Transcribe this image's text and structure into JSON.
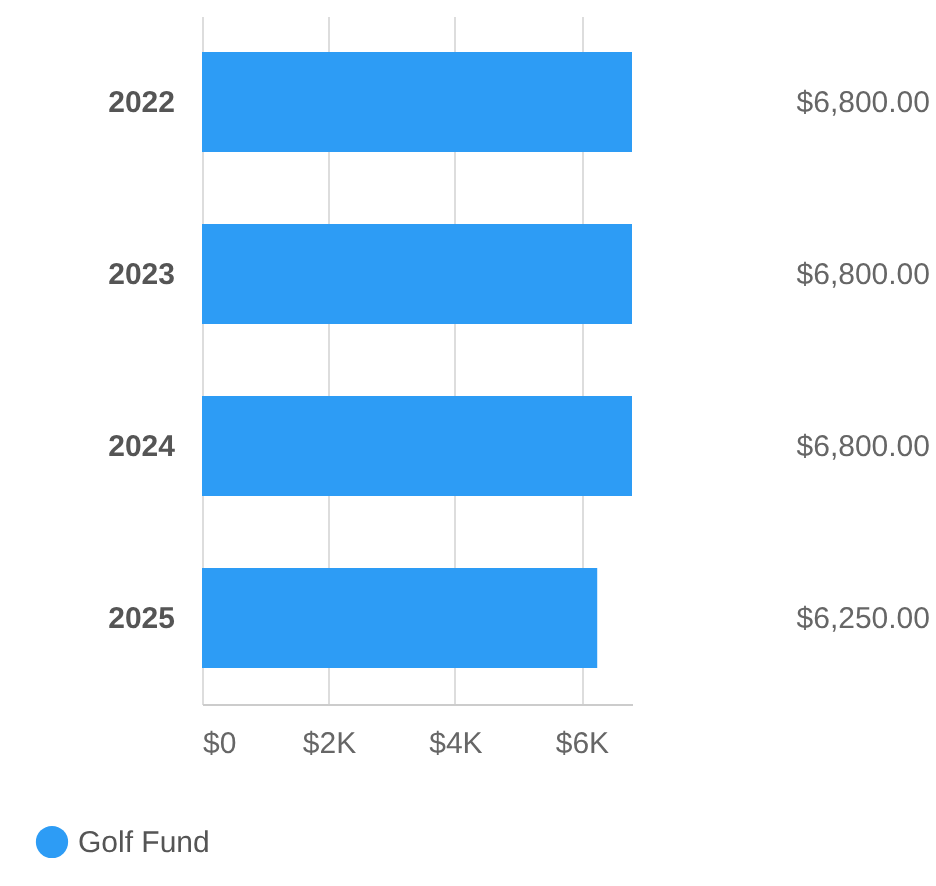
{
  "chart_data": {
    "type": "bar",
    "orientation": "horizontal",
    "categories": [
      "2022",
      "2023",
      "2024",
      "2025"
    ],
    "series": [
      {
        "name": "Golf Fund",
        "color": "#2d9cf5",
        "values": [
          6800,
          6800,
          6800,
          6250
        ]
      }
    ],
    "value_labels": [
      "$6,800.00",
      "$6,800.00",
      "$6,800.00",
      "$6,250.00"
    ],
    "xlim": [
      0,
      6800
    ],
    "xticks": [
      {
        "value": 0,
        "label": "$0"
      },
      {
        "value": 2000,
        "label": "$2K"
      },
      {
        "value": 4000,
        "label": "$4K"
      },
      {
        "value": 6000,
        "label": "$6K"
      }
    ],
    "grid": "x",
    "legend": "bottom left"
  }
}
